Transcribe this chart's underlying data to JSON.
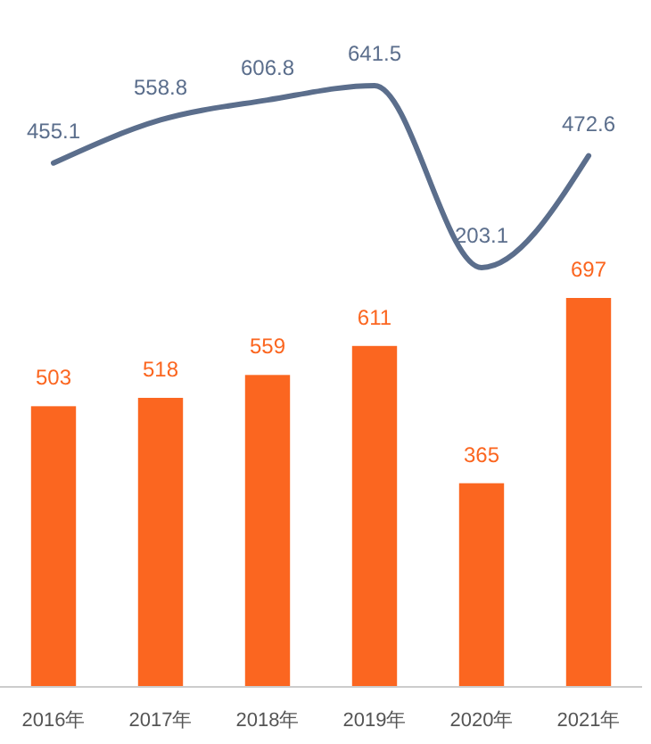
{
  "chart_data": [
    {
      "type": "line",
      "categories": [
        null,
        null,
        null,
        null,
        null,
        null
      ],
      "tick_labels": false,
      "data_labels": true,
      "marker": "none",
      "line_style": "solid",
      "series": [
        {
          "color": "#5b6e8c",
          "values": [
            455.1,
            558.8,
            606.8,
            641.5,
            203.1,
            472.6
          ]
        }
      ]
    },
    {
      "type": "bar",
      "categories": [
        "2016年",
        "2017年",
        "2018年",
        "2019年",
        "2020年",
        "2021年"
      ],
      "tick_labels": "x",
      "data_labels": true,
      "series": [
        {
          "color": "#fb6620",
          "values": [
            503,
            518,
            559,
            611,
            365,
            697
          ]
        }
      ]
    }
  ]
}
